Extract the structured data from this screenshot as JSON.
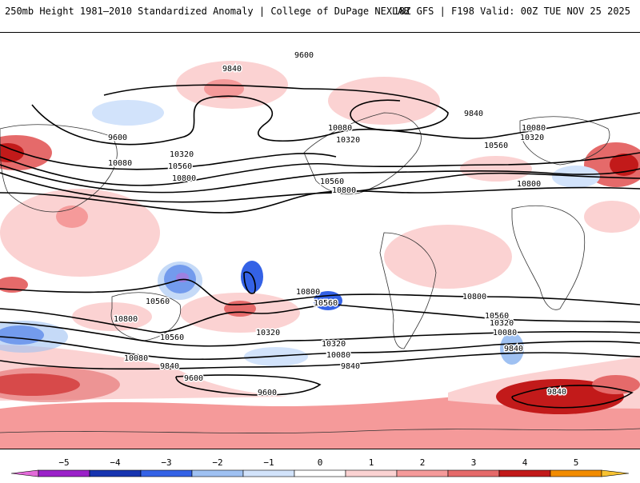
{
  "header": {
    "title": "250mb Height 1981–2010 Standardized Anomaly | College of DuPage NEXLAB",
    "run_info": "18Z GFS | F198 Valid: 00Z TUE NOV 25 2025"
  },
  "contour_labels": [
    "9600",
    "9840",
    "9840",
    "9600",
    "10080",
    "10320",
    "10560",
    "10800",
    "10080",
    "10320",
    "10560",
    "10800",
    "10560",
    "10800",
    "10080",
    "10320",
    "10560",
    "10800",
    "10800",
    "10560",
    "10560",
    "10320",
    "10080",
    "9840",
    "10800",
    "10320",
    "10560",
    "10080",
    "9840",
    "9600",
    "9600",
    "10320",
    "10080",
    "9840",
    "9840"
  ],
  "colorbar": {
    "ticks": [
      "−5",
      "−4",
      "−3",
      "−2",
      "−1",
      "0",
      "1",
      "2",
      "3",
      "4",
      "5"
    ],
    "colors": [
      "#e36ad9",
      "#9b21c9",
      "#1634b0",
      "#3462e6",
      "#9fc1f2",
      "#d2e3fb",
      "#ffffff",
      "#fbd2d2",
      "#f59a9a",
      "#e56a6a",
      "#c21a1a",
      "#f28c00",
      "#f7c232"
    ]
  },
  "anomaly_colors": {
    "pos1": "#fbd2d2",
    "pos2": "#f59a9a",
    "pos3": "#e56a6a",
    "pos4": "#c21a1a",
    "neg1": "#d2e3fb",
    "neg2": "#9fc1f2",
    "neg3": "#3462e6",
    "neg4": "#1634b0",
    "neg5": "#9b21c9"
  }
}
